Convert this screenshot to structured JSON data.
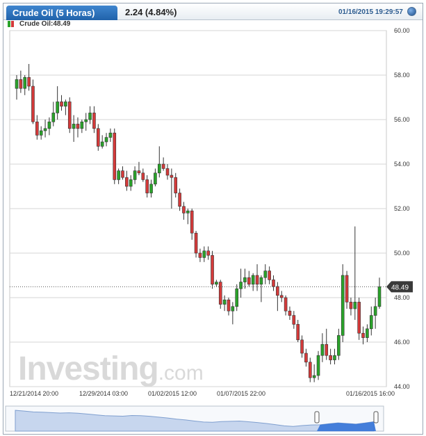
{
  "header": {
    "title": "Crude Oil (5 Horas)",
    "change": "2.24 (4.84%)",
    "timestamp": "01/16/2015 19:29:57"
  },
  "legend": {
    "label": "Crude Oil:48.49"
  },
  "watermark": {
    "brand": "Investing",
    "suffix": ".com"
  },
  "colors": {
    "up": "#2aa32a",
    "down": "#d43a3a",
    "accent": "#2062aa",
    "grid": "#d6d6d6"
  },
  "chart_data": {
    "type": "candlestick",
    "y_ticks": [
      "60.00",
      "58.00",
      "56.00",
      "54.00",
      "52.00",
      "50.00",
      "48.00",
      "46.00",
      "44.00"
    ],
    "ylim": [
      44.0,
      60.0
    ],
    "x_ticks": [
      "12/21/2014 20:00",
      "12/29/2014 03:00",
      "01/02/2015 12:00",
      "01/07/2015 22:00",
      "01/16/2015 16:00"
    ],
    "last_price_label": "48.49",
    "last_price": 48.49,
    "candles": [
      {
        "o": 57.4,
        "h": 58.0,
        "l": 56.9,
        "c": 57.8
      },
      {
        "o": 57.8,
        "h": 58.2,
        "l": 57.2,
        "c": 57.4
      },
      {
        "o": 57.4,
        "h": 58.0,
        "l": 57.1,
        "c": 57.9
      },
      {
        "o": 57.9,
        "h": 58.5,
        "l": 57.3,
        "c": 57.5
      },
      {
        "o": 57.5,
        "h": 57.8,
        "l": 55.8,
        "c": 55.9
      },
      {
        "o": 55.9,
        "h": 56.2,
        "l": 55.1,
        "c": 55.3
      },
      {
        "o": 55.3,
        "h": 55.7,
        "l": 55.1,
        "c": 55.5
      },
      {
        "o": 55.5,
        "h": 56.0,
        "l": 55.2,
        "c": 55.6
      },
      {
        "o": 55.6,
        "h": 56.1,
        "l": 55.3,
        "c": 55.9
      },
      {
        "o": 55.9,
        "h": 56.8,
        "l": 55.7,
        "c": 56.3
      },
      {
        "o": 56.3,
        "h": 57.5,
        "l": 56.0,
        "c": 56.8
      },
      {
        "o": 56.8,
        "h": 57.1,
        "l": 56.4,
        "c": 56.6
      },
      {
        "o": 56.6,
        "h": 56.9,
        "l": 56.2,
        "c": 56.8
      },
      {
        "o": 56.8,
        "h": 57.0,
        "l": 55.4,
        "c": 55.6
      },
      {
        "o": 55.6,
        "h": 56.2,
        "l": 55.0,
        "c": 55.8
      },
      {
        "o": 55.8,
        "h": 56.1,
        "l": 55.2,
        "c": 55.6
      },
      {
        "o": 55.6,
        "h": 56.0,
        "l": 55.4,
        "c": 55.9
      },
      {
        "o": 55.9,
        "h": 56.3,
        "l": 55.5,
        "c": 56.0
      },
      {
        "o": 56.0,
        "h": 56.6,
        "l": 55.8,
        "c": 56.3
      },
      {
        "o": 56.3,
        "h": 56.6,
        "l": 55.4,
        "c": 55.6
      },
      {
        "o": 55.6,
        "h": 55.8,
        "l": 54.6,
        "c": 54.8
      },
      {
        "o": 54.8,
        "h": 55.3,
        "l": 54.7,
        "c": 55.0
      },
      {
        "o": 55.0,
        "h": 55.4,
        "l": 54.8,
        "c": 55.2
      },
      {
        "o": 55.2,
        "h": 55.6,
        "l": 55.0,
        "c": 55.4
      },
      {
        "o": 55.4,
        "h": 55.6,
        "l": 53.1,
        "c": 53.3
      },
      {
        "o": 53.3,
        "h": 53.8,
        "l": 53.1,
        "c": 53.7
      },
      {
        "o": 53.7,
        "h": 53.9,
        "l": 53.3,
        "c": 53.4
      },
      {
        "o": 53.4,
        "h": 53.7,
        "l": 52.8,
        "c": 53.0
      },
      {
        "o": 53.0,
        "h": 53.5,
        "l": 52.8,
        "c": 53.3
      },
      {
        "o": 53.3,
        "h": 53.9,
        "l": 53.1,
        "c": 53.7
      },
      {
        "o": 53.7,
        "h": 54.1,
        "l": 53.5,
        "c": 53.6
      },
      {
        "o": 53.6,
        "h": 53.8,
        "l": 53.2,
        "c": 53.3
      },
      {
        "o": 53.3,
        "h": 53.5,
        "l": 52.5,
        "c": 52.7
      },
      {
        "o": 52.7,
        "h": 53.3,
        "l": 52.5,
        "c": 53.1
      },
      {
        "o": 53.1,
        "h": 53.8,
        "l": 53.0,
        "c": 53.6
      },
      {
        "o": 53.6,
        "h": 54.8,
        "l": 53.4,
        "c": 54.0
      },
      {
        "o": 54.0,
        "h": 54.3,
        "l": 53.7,
        "c": 53.8
      },
      {
        "o": 53.8,
        "h": 54.0,
        "l": 53.3,
        "c": 53.5
      },
      {
        "o": 53.5,
        "h": 53.8,
        "l": 52.0,
        "c": 53.4
      },
      {
        "o": 53.4,
        "h": 53.6,
        "l": 52.5,
        "c": 52.7
      },
      {
        "o": 52.7,
        "h": 52.9,
        "l": 51.9,
        "c": 52.1
      },
      {
        "o": 52.1,
        "h": 52.3,
        "l": 51.5,
        "c": 51.8
      },
      {
        "o": 51.8,
        "h": 52.0,
        "l": 51.3,
        "c": 51.9
      },
      {
        "o": 51.9,
        "h": 52.0,
        "l": 50.6,
        "c": 50.9
      },
      {
        "o": 50.9,
        "h": 51.0,
        "l": 49.8,
        "c": 50.0
      },
      {
        "o": 50.0,
        "h": 50.2,
        "l": 49.6,
        "c": 49.8
      },
      {
        "o": 49.8,
        "h": 50.3,
        "l": 49.6,
        "c": 50.1
      },
      {
        "o": 50.1,
        "h": 50.3,
        "l": 49.7,
        "c": 49.9
      },
      {
        "o": 49.9,
        "h": 50.1,
        "l": 48.4,
        "c": 48.6
      },
      {
        "o": 48.6,
        "h": 48.8,
        "l": 48.5,
        "c": 48.7
      },
      {
        "o": 48.7,
        "h": 48.8,
        "l": 47.5,
        "c": 47.7
      },
      {
        "o": 47.7,
        "h": 48.1,
        "l": 47.4,
        "c": 47.9
      },
      {
        "o": 47.9,
        "h": 48.0,
        "l": 47.2,
        "c": 47.4
      },
      {
        "o": 47.4,
        "h": 47.8,
        "l": 46.8,
        "c": 47.6
      },
      {
        "o": 47.6,
        "h": 48.6,
        "l": 47.4,
        "c": 48.4
      },
      {
        "o": 48.4,
        "h": 49.3,
        "l": 48.0,
        "c": 48.7
      },
      {
        "o": 48.7,
        "h": 49.3,
        "l": 48.4,
        "c": 48.9
      },
      {
        "o": 48.9,
        "h": 49.2,
        "l": 48.5,
        "c": 48.6
      },
      {
        "o": 48.6,
        "h": 49.1,
        "l": 48.3,
        "c": 49.0
      },
      {
        "o": 49.0,
        "h": 49.5,
        "l": 48.3,
        "c": 48.6
      },
      {
        "o": 48.6,
        "h": 49.0,
        "l": 47.8,
        "c": 48.9
      },
      {
        "o": 48.9,
        "h": 49.5,
        "l": 48.6,
        "c": 49.2
      },
      {
        "o": 49.2,
        "h": 49.4,
        "l": 48.6,
        "c": 48.8
      },
      {
        "o": 48.8,
        "h": 49.0,
        "l": 48.3,
        "c": 48.5
      },
      {
        "o": 48.5,
        "h": 48.7,
        "l": 47.4,
        "c": 48.1
      },
      {
        "o": 48.1,
        "h": 48.3,
        "l": 47.8,
        "c": 48.0
      },
      {
        "o": 48.0,
        "h": 48.1,
        "l": 47.2,
        "c": 47.4
      },
      {
        "o": 47.4,
        "h": 47.6,
        "l": 47.0,
        "c": 47.2
      },
      {
        "o": 47.2,
        "h": 47.4,
        "l": 46.6,
        "c": 46.8
      },
      {
        "o": 46.8,
        "h": 47.0,
        "l": 46.0,
        "c": 46.1
      },
      {
        "o": 46.1,
        "h": 46.3,
        "l": 45.3,
        "c": 45.5
      },
      {
        "o": 45.5,
        "h": 45.7,
        "l": 44.9,
        "c": 45.1
      },
      {
        "o": 45.1,
        "h": 45.3,
        "l": 44.2,
        "c": 44.4
      },
      {
        "o": 44.4,
        "h": 45.0,
        "l": 44.2,
        "c": 44.5
      },
      {
        "o": 44.5,
        "h": 45.6,
        "l": 44.3,
        "c": 45.4
      },
      {
        "o": 45.4,
        "h": 46.4,
        "l": 45.1,
        "c": 45.9
      },
      {
        "o": 45.9,
        "h": 46.6,
        "l": 45.2,
        "c": 45.4
      },
      {
        "o": 45.4,
        "h": 45.7,
        "l": 45.0,
        "c": 45.2
      },
      {
        "o": 45.2,
        "h": 45.7,
        "l": 45.0,
        "c": 45.4
      },
      {
        "o": 45.4,
        "h": 46.6,
        "l": 45.2,
        "c": 46.3
      },
      {
        "o": 46.3,
        "h": 49.5,
        "l": 46.0,
        "c": 49.0
      },
      {
        "o": 49.0,
        "h": 49.2,
        "l": 47.5,
        "c": 47.8
      },
      {
        "o": 47.8,
        "h": 48.0,
        "l": 47.2,
        "c": 47.5
      },
      {
        "o": 47.5,
        "h": 51.2,
        "l": 47.0,
        "c": 47.8
      },
      {
        "o": 47.8,
        "h": 48.0,
        "l": 46.1,
        "c": 46.4
      },
      {
        "o": 46.4,
        "h": 46.7,
        "l": 45.9,
        "c": 46.2
      },
      {
        "o": 46.2,
        "h": 46.8,
        "l": 46.0,
        "c": 46.6
      },
      {
        "o": 46.6,
        "h": 47.6,
        "l": 46.3,
        "c": 47.2
      },
      {
        "o": 47.2,
        "h": 48.0,
        "l": 46.6,
        "c": 47.6
      },
      {
        "o": 47.6,
        "h": 48.9,
        "l": 47.5,
        "c": 48.49
      }
    ],
    "navigator": [
      57.8,
      57.2,
      56.5,
      56.3,
      55.9,
      55.6,
      55.8,
      55.4,
      54.8,
      54.1,
      53.4,
      53.2,
      53.0,
      53.6,
      53.4,
      52.9,
      52.2,
      51.5,
      50.6,
      49.9,
      49.0,
      48.2,
      48.0,
      48.6,
      48.8,
      49.0,
      48.4,
      47.8,
      47.0,
      46.1,
      45.1,
      44.6,
      45.3,
      45.8,
      45.9,
      46.8,
      47.5,
      47.0,
      46.5,
      47.4,
      48.49
    ]
  }
}
